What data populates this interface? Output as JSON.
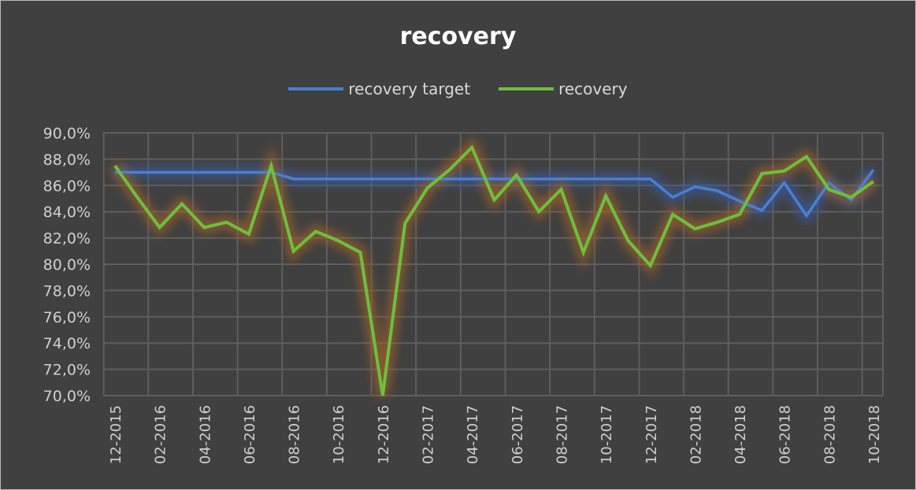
{
  "chart_data": {
    "type": "line",
    "title": "recovery",
    "xlabel": "",
    "ylabel": "",
    "ylim": [
      70,
      90
    ],
    "y_ticks": [
      "70,0%",
      "72,0%",
      "74,0%",
      "76,0%",
      "78,0%",
      "80,0%",
      "82,0%",
      "84,0%",
      "86,0%",
      "88,0%",
      "90,0%"
    ],
    "grid": true,
    "legend_position": "top",
    "x": [
      "12-2015",
      "01-2016",
      "02-2016",
      "03-2016",
      "04-2016",
      "05-2016",
      "06-2016",
      "07-2016",
      "08-2016",
      "09-2016",
      "10-2016",
      "11-2016",
      "12-2016",
      "01-2017",
      "02-2017",
      "03-2017",
      "04-2017",
      "05-2017",
      "06-2017",
      "07-2017",
      "08-2017",
      "09-2017",
      "10-2017",
      "11-2017",
      "12-2017",
      "01-2018",
      "02-2018",
      "03-2018",
      "04-2018",
      "05-2018",
      "06-2018",
      "07-2018",
      "08-2018",
      "09-2018",
      "10-2018"
    ],
    "x_tick_labels": [
      "12-2015",
      "02-2016",
      "04-2016",
      "06-2016",
      "08-2016",
      "10-2016",
      "12-2016",
      "02-2017",
      "04-2017",
      "06-2017",
      "08-2017",
      "10-2017",
      "12-2017",
      "02-2018",
      "04-2018",
      "06-2018",
      "08-2018",
      "10-2018"
    ],
    "series": [
      {
        "name": "recovery target",
        "color": "#4a7fd4",
        "values": [
          87.0,
          87.0,
          87.0,
          87.0,
          87.0,
          87.0,
          87.0,
          87.0,
          86.5,
          86.5,
          86.5,
          86.5,
          86.5,
          86.5,
          86.5,
          86.5,
          86.5,
          86.5,
          86.5,
          86.5,
          86.5,
          86.5,
          86.5,
          86.5,
          86.5,
          85.1,
          85.9,
          85.6,
          84.8,
          84.1,
          86.2,
          83.7,
          86.2,
          84.9,
          87.2
        ]
      },
      {
        "name": "recovery",
        "color": "#6cc03a",
        "values": [
          87.5,
          85.1,
          82.8,
          84.6,
          82.8,
          83.2,
          82.3,
          87.5,
          81.0,
          82.5,
          81.8,
          80.9,
          70.0,
          83.1,
          85.8,
          87.2,
          88.9,
          84.9,
          86.8,
          84.0,
          85.7,
          80.9,
          85.2,
          81.8,
          79.9,
          83.8,
          82.7,
          83.2,
          83.8,
          86.9,
          87.1,
          88.2,
          85.7,
          85.1,
          86.3
        ]
      }
    ]
  }
}
